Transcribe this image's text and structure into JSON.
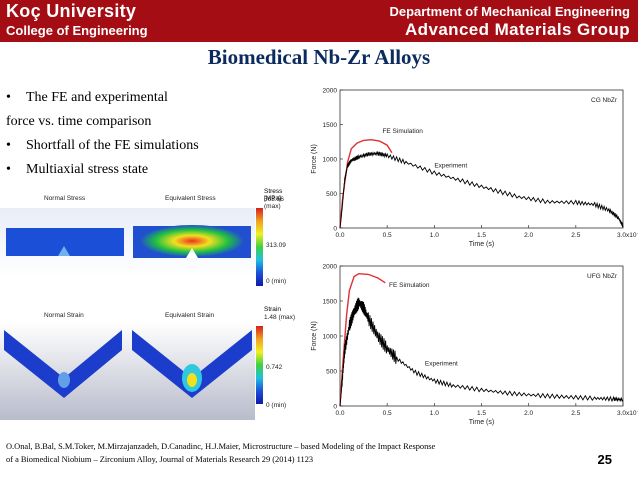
{
  "header": {
    "left_line1": "Koç University",
    "left_line2": "College of Engineering",
    "right_line1": "Department of Mechanical Engineering",
    "right_line2": "Advanced Materials Group",
    "bg_color": "#a40d14"
  },
  "title": "Biomedical Nb-Zr Alloys",
  "bullets": [
    {
      "marker": "•",
      "text": "The FE and experimental"
    },
    {
      "marker": "",
      "text": "force vs. time comparison"
    },
    {
      "marker": "•",
      "text": "Shortfall of the FE simulations"
    },
    {
      "marker": "•",
      "text": "Multiaxial stress state"
    }
  ],
  "simulations": {
    "stress": {
      "normal_label": "Normal Stress",
      "equiv_label": "Equivalent Stress",
      "legend_title": "Stress [MPa]",
      "max_label": "563.56 (max)",
      "mid_label": "313.09",
      "min_label": "0 (min)"
    },
    "strain": {
      "normal_label": "Normal Strain",
      "equiv_label": "Equivalent Strain",
      "legend_title": "Strain",
      "max_label": "1.48 (max)",
      "mid_label": "0.742",
      "min_label": "0 (min)"
    }
  },
  "chart_data": [
    {
      "type": "line",
      "title": "CG NbZr",
      "xlabel": "Time (s)",
      "ylabel": "Force (N)",
      "xlim": [
        0,
        3.0
      ],
      "ylim": [
        0,
        2000
      ],
      "x_ticks": [
        "0.0",
        "0.5",
        "1.0",
        "1.5",
        "2.0",
        "2.5",
        "3.0x10⁻³"
      ],
      "y_ticks": [
        "0",
        "500",
        "1000",
        "1500",
        "2000"
      ],
      "grid": false,
      "annotations": [
        "FE Simulation",
        "Experiment"
      ],
      "series": [
        {
          "name": "FE Simulation",
          "color": "#e03030",
          "x": [
            0.0,
            0.03,
            0.08,
            0.12,
            0.18,
            0.25,
            0.33,
            0.42,
            0.5,
            0.55
          ],
          "y": [
            0,
            450,
            950,
            1150,
            1230,
            1270,
            1280,
            1260,
            1200,
            1090
          ]
        },
        {
          "name": "Experiment",
          "color": "#000000",
          "x": [
            0.0,
            0.02,
            0.05,
            0.08,
            0.12,
            0.2,
            0.3,
            0.4,
            0.5,
            0.7,
            1.0,
            1.3,
            1.6,
            1.9,
            2.2,
            2.5,
            2.7,
            2.85,
            2.95,
            3.0
          ],
          "y": [
            0,
            250,
            700,
            900,
            980,
            1030,
            1070,
            1080,
            1050,
            950,
            800,
            680,
            560,
            450,
            380,
            370,
            340,
            260,
            150,
            30
          ]
        }
      ]
    },
    {
      "type": "line",
      "title": "UFG NbZr",
      "xlabel": "Time (s)",
      "ylabel": "Force (N)",
      "xlim": [
        0,
        3.0
      ],
      "ylim": [
        0,
        2000
      ],
      "x_ticks": [
        "0.0",
        "0.5",
        "1.0",
        "1.5",
        "2.0",
        "2.5",
        "3.0x10⁻³"
      ],
      "y_ticks": [
        "0",
        "500",
        "1000",
        "1500",
        "2000"
      ],
      "grid": false,
      "annotations": [
        "FE Simulation",
        "Experiment"
      ],
      "series": [
        {
          "name": "FE Simulation",
          "color": "#e03030",
          "x": [
            0.0,
            0.03,
            0.07,
            0.1,
            0.15,
            0.2,
            0.3,
            0.4,
            0.48
          ],
          "y": [
            0,
            600,
            1300,
            1650,
            1850,
            1890,
            1880,
            1830,
            1760
          ]
        },
        {
          "name": "Experiment",
          "color": "#000000",
          "x": [
            0.0,
            0.02,
            0.05,
            0.1,
            0.15,
            0.2,
            0.25,
            0.3,
            0.4,
            0.5,
            0.6,
            0.8,
            1.0,
            1.2,
            1.5,
            1.8,
            2.1,
            2.4,
            2.7,
            2.9,
            3.0
          ],
          "y": [
            0,
            300,
            800,
            1150,
            1350,
            1480,
            1400,
            1250,
            1000,
            820,
            680,
            480,
            360,
            290,
            230,
            180,
            150,
            130,
            110,
            100,
            90
          ]
        }
      ]
    }
  ],
  "reference": {
    "line1": "O.Onal, B.Bal, S.M.Toker, M.Mirzajanzadeh, D.Canadinc, H.J.Maier, Microstructure – based Modeling of the Impact Response",
    "line2": "of a Biomedical Niobium – Zirconium Alloy, Journal of Materials Research 29 (2014) 1123"
  },
  "page_number": "25"
}
